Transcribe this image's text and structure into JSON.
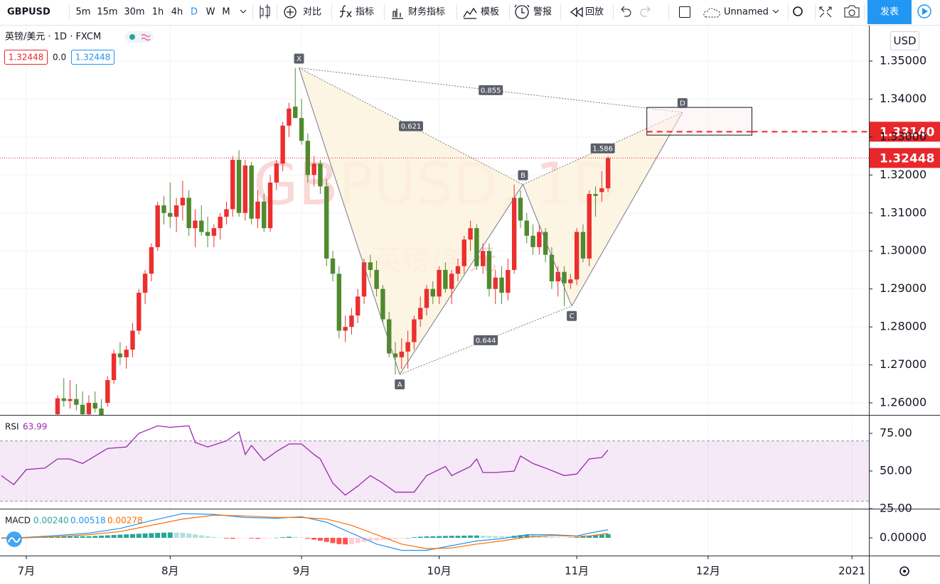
{
  "toolbar": {
    "symbol": "GBPUSD",
    "intervals": [
      "5m",
      "15m",
      "30m",
      "1h",
      "4h",
      "D",
      "W",
      "M"
    ],
    "buttons": [
      "对比",
      "指标",
      "财务指标",
      "模板",
      "警报",
      "回放"
    ],
    "layout_name": "Unnamed",
    "publish": "发表"
  },
  "chart_data": {
    "type": "candlestick",
    "legend": {
      "title": "英镑/美元 · 1D · FXCM",
      "bid": "1.32448",
      "spread": "0.0",
      "ask": "1.32448"
    },
    "currency": "USD",
    "watermark": {
      "symbol": "GBPUSD, 1D",
      "name": "英镑/美元"
    },
    "xlim": [
      -4.2,
      134.7
    ],
    "xticks": [
      {
        "value": 0,
        "label": "7月"
      },
      {
        "value": 23,
        "label": "8月"
      },
      {
        "value": 44,
        "label": "9月"
      },
      {
        "value": 66,
        "label": "10月"
      },
      {
        "value": 88,
        "label": "11月"
      },
      {
        "value": 109,
        "label": "12月"
      },
      {
        "value": 132,
        "label": "2021"
      }
    ],
    "ylim": [
      1.25683,
      1.35934
    ],
    "yticks": [
      {
        "value": 1.35,
        "label": "1.35000"
      },
      {
        "value": 1.34,
        "label": "1.34000"
      },
      {
        "value": 1.33,
        "label": "1.33000"
      },
      {
        "value": 1.32,
        "label": "1.32000"
      },
      {
        "value": 1.31,
        "label": "1.31000"
      },
      {
        "value": 1.3,
        "label": "1.30000"
      },
      {
        "value": 1.29,
        "label": "1.29000"
      },
      {
        "value": 1.28,
        "label": "1.28000"
      },
      {
        "value": 1.27,
        "label": "1.27000"
      },
      {
        "value": 1.26,
        "label": "1.26000"
      }
    ],
    "grid": true,
    "candles": {
      "up_color": "#eb2f2f",
      "down_color": "#4f8a2e",
      "x": [
        5,
        6,
        7,
        8,
        9,
        10,
        11,
        12,
        13,
        14,
        15,
        16,
        17,
        18,
        19,
        20,
        21,
        22,
        23,
        24,
        25,
        26,
        27,
        28,
        29,
        30,
        31,
        32,
        33,
        34,
        35,
        36,
        37,
        38,
        39,
        40,
        41,
        42,
        43,
        44,
        45,
        46,
        47,
        48,
        49,
        50,
        51,
        52,
        53,
        54,
        55,
        56,
        57,
        58,
        59,
        60,
        61,
        62,
        63,
        64,
        65,
        66,
        67,
        68,
        69,
        70,
        71,
        72,
        73,
        74,
        75,
        76,
        77,
        78,
        79,
        80,
        81,
        82,
        83,
        84,
        85,
        86,
        87,
        88,
        89,
        90,
        91,
        92,
        93
      ],
      "open": [
        1.257,
        1.2612,
        1.2605,
        1.261,
        1.2595,
        1.257,
        1.26,
        1.2585,
        1.26,
        1.266,
        1.273,
        1.272,
        1.274,
        1.279,
        1.289,
        1.294,
        1.301,
        1.312,
        1.31,
        1.309,
        1.312,
        1.314,
        1.306,
        1.308,
        1.305,
        1.304,
        1.306,
        1.309,
        1.311,
        1.324,
        1.31,
        1.3225,
        1.3085,
        1.313,
        1.306,
        1.318,
        1.323,
        1.333,
        1.338,
        1.335,
        1.329,
        1.32,
        1.323,
        1.317,
        1.298,
        1.294,
        1.279,
        1.28,
        1.283,
        1.288,
        1.297,
        1.295,
        1.29,
        1.282,
        1.273,
        1.272,
        1.2735,
        1.276,
        1.282,
        1.285,
        1.29,
        1.288,
        1.295,
        1.29,
        1.294,
        1.296,
        1.303,
        1.306,
        1.296,
        1.3,
        1.29,
        1.293,
        1.289,
        1.295,
        1.314,
        1.308,
        1.304,
        1.301,
        1.305,
        1.299,
        1.292,
        1.2945,
        1.2915,
        1.2925,
        1.305,
        1.298,
        1.315,
        1.3155,
        1.3165
      ],
      "high": [
        1.262,
        1.2665,
        1.266,
        1.265,
        1.263,
        1.262,
        1.263,
        1.261,
        1.267,
        1.274,
        1.276,
        1.275,
        1.281,
        1.29,
        1.295,
        1.302,
        1.313,
        1.3145,
        1.318,
        1.314,
        1.3185,
        1.316,
        1.311,
        1.312,
        1.309,
        1.307,
        1.31,
        1.313,
        1.325,
        1.3265,
        1.324,
        1.3235,
        1.316,
        1.315,
        1.32,
        1.324,
        1.334,
        1.339,
        1.3482,
        1.34,
        1.331,
        1.325,
        1.324,
        1.319,
        1.3,
        1.296,
        1.283,
        1.285,
        1.29,
        1.298,
        1.299,
        1.2975,
        1.291,
        1.284,
        1.276,
        1.277,
        1.279,
        1.283,
        1.288,
        1.291,
        1.292,
        1.296,
        1.297,
        1.295,
        1.298,
        1.304,
        1.308,
        1.307,
        1.302,
        1.302,
        1.295,
        1.296,
        1.298,
        1.3175,
        1.316,
        1.31,
        1.307,
        1.307,
        1.306,
        1.301,
        1.296,
        1.296,
        1.294,
        1.306,
        1.307,
        1.316,
        1.317,
        1.321,
        1.325
      ],
      "low": [
        1.2555,
        1.259,
        1.2585,
        1.258,
        1.256,
        1.255,
        1.2575,
        1.255,
        1.259,
        1.265,
        1.27,
        1.269,
        1.272,
        1.278,
        1.286,
        1.292,
        1.3,
        1.307,
        1.306,
        1.305,
        1.308,
        1.304,
        1.301,
        1.304,
        1.301,
        1.301,
        1.303,
        1.307,
        1.309,
        1.309,
        1.308,
        1.307,
        1.306,
        1.305,
        1.305,
        1.316,
        1.321,
        1.33,
        1.335,
        1.328,
        1.318,
        1.317,
        1.315,
        1.296,
        1.292,
        1.277,
        1.276,
        1.278,
        1.281,
        1.286,
        1.293,
        1.288,
        1.281,
        1.272,
        1.2675,
        1.269,
        1.269,
        1.274,
        1.28,
        1.283,
        1.286,
        1.286,
        1.289,
        1.286,
        1.292,
        1.294,
        1.3,
        1.295,
        1.294,
        1.288,
        1.286,
        1.286,
        1.287,
        1.294,
        1.306,
        1.302,
        1.299,
        1.299,
        1.297,
        1.29,
        1.288,
        1.2855,
        1.29,
        1.291,
        1.297,
        1.296,
        1.309,
        1.313,
        1.3155
      ],
      "close": [
        1.2612,
        1.2605,
        1.261,
        1.2595,
        1.257,
        1.26,
        1.2585,
        1.256,
        1.266,
        1.273,
        1.272,
        1.274,
        1.279,
        1.289,
        1.294,
        1.301,
        1.312,
        1.31,
        1.309,
        1.312,
        1.314,
        1.306,
        1.308,
        1.305,
        1.304,
        1.306,
        1.309,
        1.311,
        1.324,
        1.31,
        1.3225,
        1.3085,
        1.313,
        1.306,
        1.318,
        1.323,
        1.333,
        1.3375,
        1.335,
        1.329,
        1.32,
        1.323,
        1.317,
        1.298,
        1.294,
        1.279,
        1.28,
        1.283,
        1.288,
        1.297,
        1.295,
        1.29,
        1.282,
        1.273,
        1.272,
        1.2735,
        1.276,
        1.282,
        1.285,
        1.29,
        1.288,
        1.295,
        1.29,
        1.294,
        1.296,
        1.303,
        1.306,
        1.296,
        1.3,
        1.29,
        1.293,
        1.289,
        1.295,
        1.314,
        1.308,
        1.304,
        1.301,
        1.305,
        1.299,
        1.292,
        1.2945,
        1.2915,
        1.2925,
        1.305,
        1.298,
        1.315,
        1.3145,
        1.3165,
        1.32448
      ]
    },
    "pattern": {
      "fill": "#fdf3df",
      "line_color": "#787b86",
      "points": [
        {
          "label": "X",
          "x": 43.6,
          "y": 1.3482
        },
        {
          "label": "A",
          "x": 59.7,
          "y": 1.2675
        },
        {
          "label": "B",
          "x": 79.4,
          "y": 1.3175
        },
        {
          "label": "C",
          "x": 87.2,
          "y": 1.2855
        },
        {
          "label": "D",
          "x": 104.9,
          "y": 1.3365
        }
      ],
      "ratios": [
        0.855,
        0.621,
        1.586,
        0.644
      ],
      "zone": {
        "x": [
          99.2,
          116
        ],
        "top": 1.3378,
        "bottom": 1.3305
      }
    },
    "levels": [
      {
        "value": 1.3314,
        "label": "1.33140",
        "color": "#e8272b",
        "style": "dashed"
      },
      {
        "value": 1.32448,
        "label": "1.32448",
        "color": "#e8272b",
        "style": "dotted"
      }
    ],
    "rsi": {
      "label": "RSI",
      "color": "#9c27b0",
      "ylim": [
        25,
        86.8
      ],
      "band": [
        30,
        70
      ],
      "yticks": [
        {
          "value": 75,
          "label": "75.00"
        },
        {
          "value": 50,
          "label": "50.00"
        },
        {
          "value": 25,
          "label": "25.00"
        }
      ],
      "x": [
        -4,
        -2,
        0,
        3,
        5,
        7,
        9,
        13,
        16,
        18,
        21,
        23,
        26,
        27,
        29,
        32,
        34,
        35,
        36,
        38,
        40,
        42,
        44,
        46,
        47,
        49,
        51,
        53,
        55,
        57,
        59,
        62,
        64,
        66,
        67,
        68,
        71,
        72,
        73,
        75,
        78,
        79,
        81,
        83,
        86,
        88,
        89,
        90,
        92,
        93
      ],
      "values": [
        47,
        41,
        51,
        52,
        58,
        58,
        55,
        65,
        66,
        75,
        80,
        79,
        80,
        69,
        66,
        70,
        76,
        61,
        67,
        57,
        63,
        68,
        68,
        61,
        58,
        42,
        34,
        40,
        47,
        42,
        36,
        36,
        47,
        51,
        53,
        47,
        53,
        58,
        49,
        49,
        50,
        60,
        55,
        52,
        47,
        48,
        53,
        58,
        59,
        63.99
      ]
    },
    "macd": {
      "label": "MACD",
      "ylim": [
        -0.01136,
        0.01818
      ],
      "yticks": [
        {
          "value": 0,
          "label": "0.00000"
        }
      ],
      "x": [
        -4,
        0,
        5,
        10,
        15,
        20,
        25,
        30,
        35,
        40,
        44,
        48,
        52,
        56,
        60,
        64,
        68,
        72,
        76,
        80,
        84,
        88,
        90,
        93
      ],
      "lines": [
        {
          "color": "#2196f3",
          "legend_label": "0.00518",
          "values": [
            -0.0003,
            0.0003,
            0.0015,
            0.003,
            0.006,
            0.011,
            0.0155,
            0.015,
            0.013,
            0.0125,
            0.0135,
            0.01,
            0.003,
            -0.004,
            -0.008,
            -0.008,
            -0.005,
            -0.002,
            -0.0005,
            0.002,
            0.002,
            0.0012,
            0.003,
            0.00518
          ]
        },
        {
          "color": "#ff6d00",
          "legend_label": "0.00278",
          "values": [
            0,
            0,
            0.0008,
            0.002,
            0.004,
            0.008,
            0.012,
            0.0145,
            0.014,
            0.013,
            0.013,
            0.012,
            0.008,
            0.002,
            -0.004,
            -0.007,
            -0.0065,
            -0.004,
            -0.002,
            0.0005,
            0.0015,
            0.001,
            0.0012,
            0.00278
          ]
        }
      ],
      "hist": {
        "legend_label": "0.00240",
        "colors": [
          "#26a69a",
          "#b2dfdb",
          "#ff5252",
          "#ffcdd2"
        ],
        "x": [
          0,
          1,
          2,
          3,
          4,
          5,
          6,
          7,
          8,
          9,
          10,
          11,
          12,
          13,
          14,
          15,
          16,
          17,
          18,
          19,
          20,
          21,
          22,
          23,
          24,
          25,
          26,
          27,
          28,
          29,
          30,
          31,
          32,
          33,
          34,
          35,
          36,
          37,
          38,
          39,
          40,
          41,
          42,
          43,
          44,
          45,
          46,
          47,
          48,
          49,
          50,
          51,
          52,
          53,
          54,
          55,
          56,
          57,
          58,
          59,
          60,
          61,
          62,
          63,
          64,
          65,
          66,
          67,
          68,
          69,
          70,
          71,
          72,
          73,
          74,
          75,
          76,
          77,
          78,
          79,
          80,
          81,
          82,
          83,
          84,
          85,
          86,
          87,
          88,
          89,
          90,
          91,
          92,
          93
        ],
        "values": [
          0.0003,
          0.0004,
          0.0005,
          0.0006,
          0.0007,
          0.0007,
          0.0008,
          0.0009,
          0.001,
          0.001,
          0.001,
          0.0012,
          0.0014,
          0.0016,
          0.0018,
          0.002,
          0.0022,
          0.0024,
          0.0026,
          0.0028,
          0.003,
          0.0032,
          0.0033,
          0.0034,
          0.0033,
          0.0032,
          0.0028,
          0.0022,
          0.0016,
          0.001,
          0.0006,
          0.0002,
          -0.0004,
          -0.0006,
          -0.0004,
          -0.0002,
          -0.0004,
          -0.0006,
          -0.0005,
          -0.0002,
          0.0001,
          0.0004,
          0.0007,
          0.0006,
          0.0003,
          -0.0005,
          -0.0012,
          -0.0018,
          -0.0026,
          -0.0034,
          -0.004,
          -0.0042,
          -0.004,
          -0.0034,
          -0.0026,
          -0.002,
          -0.0016,
          -0.0014,
          -0.0012,
          -0.0008,
          -0.0004,
          0.0,
          0.0004,
          0.0007,
          0.0009,
          0.001,
          0.0011,
          0.0012,
          0.0013,
          0.0013,
          0.0014,
          0.0015,
          0.0015,
          0.0014,
          0.0012,
          0.0011,
          0.001,
          0.0009,
          0.0013,
          0.0017,
          0.0019,
          0.0017,
          0.0014,
          0.001,
          0.0006,
          0.0003,
          0.0001,
          0.0002,
          0.0005,
          0.0008,
          0.0014,
          0.0018,
          0.0021,
          0.0024
        ]
      }
    }
  }
}
